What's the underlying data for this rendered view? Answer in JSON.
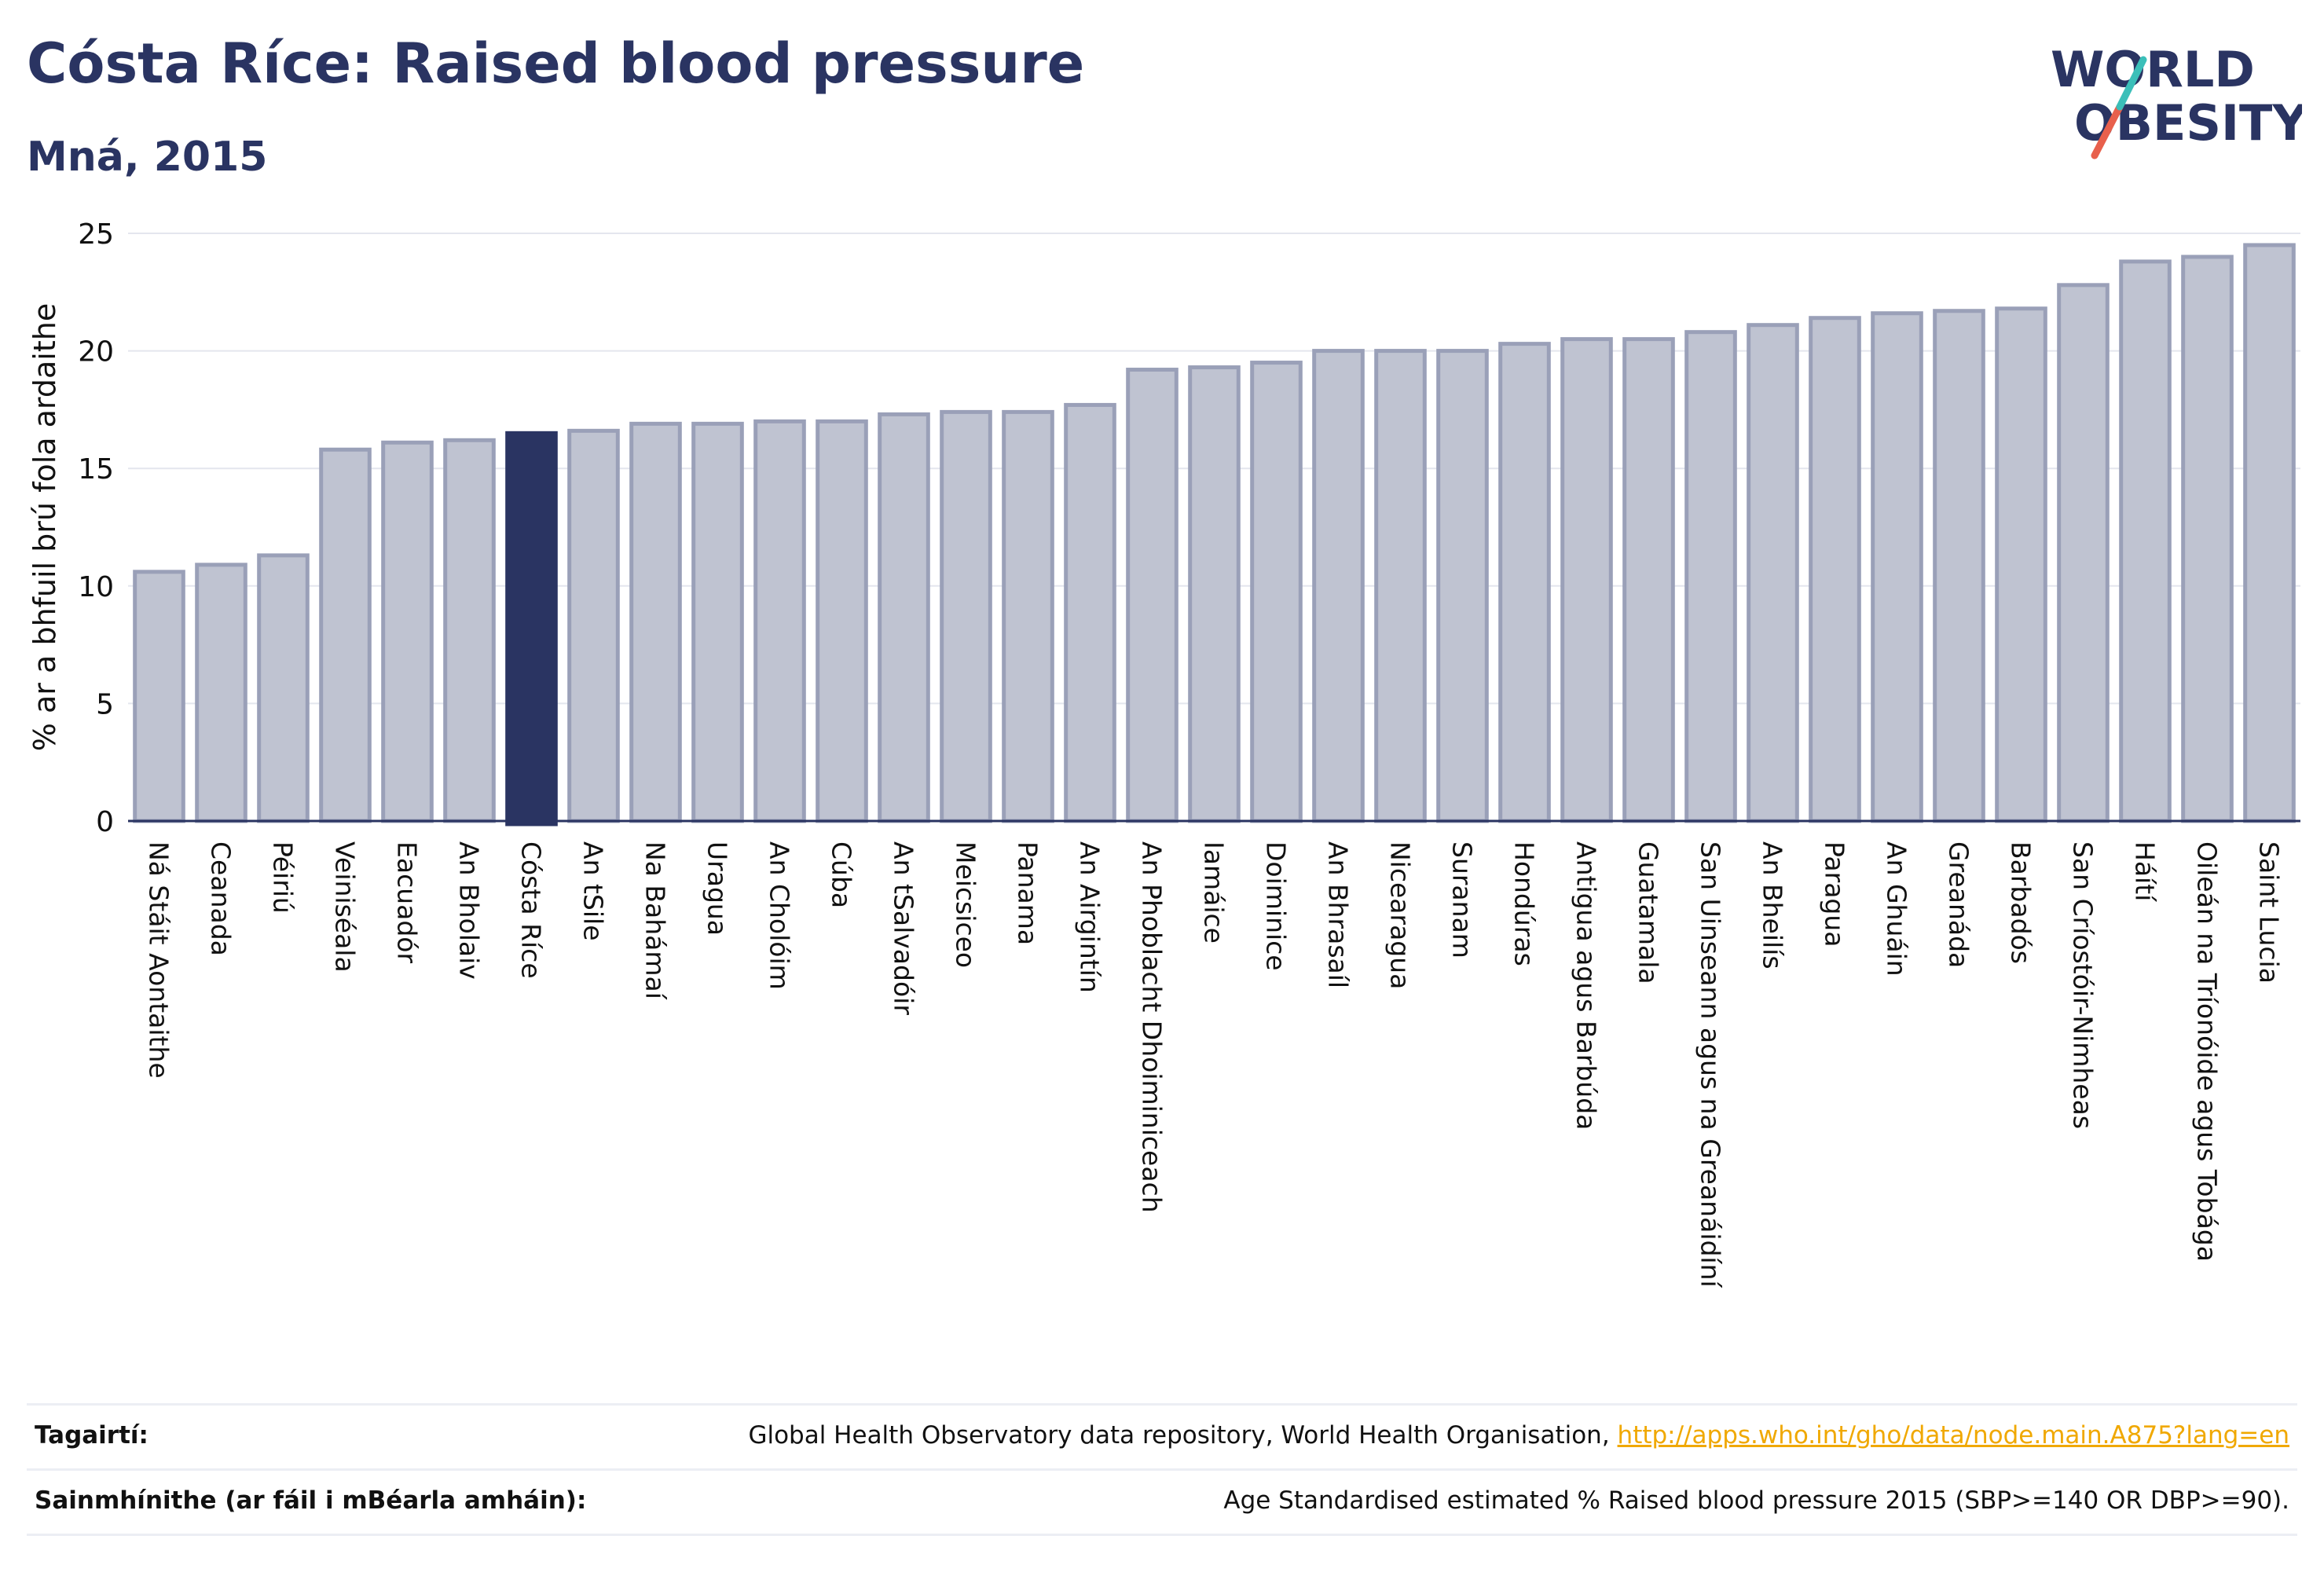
{
  "header": {
    "title": "Cósta Ríce: Raised blood pressure",
    "subtitle": "Mná, 2015"
  },
  "logo": {
    "line1": "WORLD",
    "line2": "OBESITY"
  },
  "colors": {
    "highlight": "#2a3462",
    "bar": "#bfc3d1",
    "bar_border": "#9aa0b8",
    "axis": "#2a3462",
    "link": "#f0a800"
  },
  "chart_data": {
    "type": "bar",
    "ylabel": "% ar a bhfuil brú fola ardaithe",
    "ylim": [
      0,
      25
    ],
    "yticks": [
      0,
      5,
      10,
      15,
      20,
      25
    ],
    "highlight": "Cósta Ríce",
    "grid": true,
    "categories": [
      "Ná Stáit Aontaithe",
      "Ceanada",
      "Péiriú",
      "Veiniséala",
      "Eacuadór",
      "An Bholaiv",
      "Cósta Ríce",
      "An tSile",
      "Na Bahámaí",
      "Uragua",
      "An Cholóim",
      "Cúba",
      "An tSalvadóir",
      "Meicsiceo",
      "Panama",
      "An Airgintín",
      "An Phoblacht Dhoiminiceach",
      "Iamáice",
      "Doiminice",
      "An Bhrasaíl",
      "Nicearagua",
      "Suranam",
      "Hondúras",
      "Antigua agus Barbúda",
      "Guatamala",
      "San Uinseann agus na Greanáidíní",
      "An Bheilís",
      "Paragua",
      "An Ghuáin",
      "Greanáda",
      "Barbadós",
      "San Críostóir-Nimheas",
      "Háítí",
      "Oileán na Tríonóide agus Tobága",
      "Saint Lucia"
    ],
    "values": [
      10.6,
      10.9,
      11.3,
      15.8,
      16.1,
      16.2,
      16.5,
      16.6,
      16.9,
      16.9,
      17.0,
      17.0,
      17.3,
      17.4,
      17.4,
      17.7,
      19.2,
      19.3,
      19.5,
      20.0,
      20.0,
      20.0,
      20.3,
      20.5,
      20.5,
      20.8,
      21.1,
      21.4,
      21.6,
      21.7,
      21.8,
      22.8,
      23.8,
      24.0,
      24.5
    ]
  },
  "footer": {
    "references_label": "Tagairtí:",
    "references_text": "Global Health Observatory data repository, World Health Organisation, ",
    "references_link": "http://apps.who.int/gho/data/node.main.A875?lang=en",
    "definitions_label": "Sainmhínithe (ar fáil i mBéarla amháin):",
    "definitions_text": "Age Standardised estimated % Raised blood pressure 2015 (SBP>=140 OR DBP>=90)."
  }
}
